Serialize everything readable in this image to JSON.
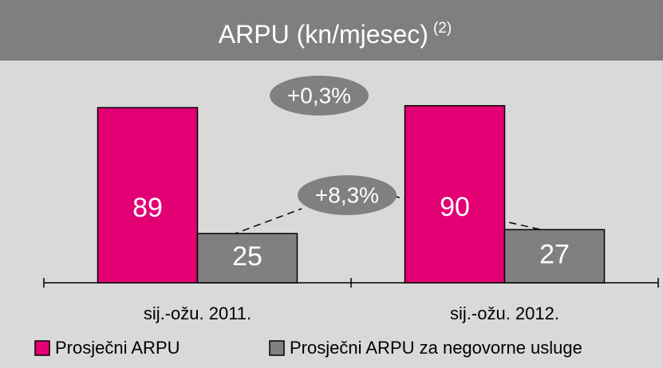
{
  "chart_data": {
    "type": "bar",
    "title": "ARPU (kn/mjesec)",
    "title_note": "(2)",
    "categories": [
      "sij.-ožu. 2011.",
      "sij.-ožu. 2012."
    ],
    "series": [
      {
        "name": "Prosječni ARPU",
        "color": "#e20074",
        "values": [
          89,
          90
        ]
      },
      {
        "name": "Prosječni ARPU za negovorne usluge",
        "color": "#808080",
        "values": [
          25,
          27
        ]
      }
    ],
    "annotations": [
      "+0,3%",
      "+8,3%"
    ]
  }
}
